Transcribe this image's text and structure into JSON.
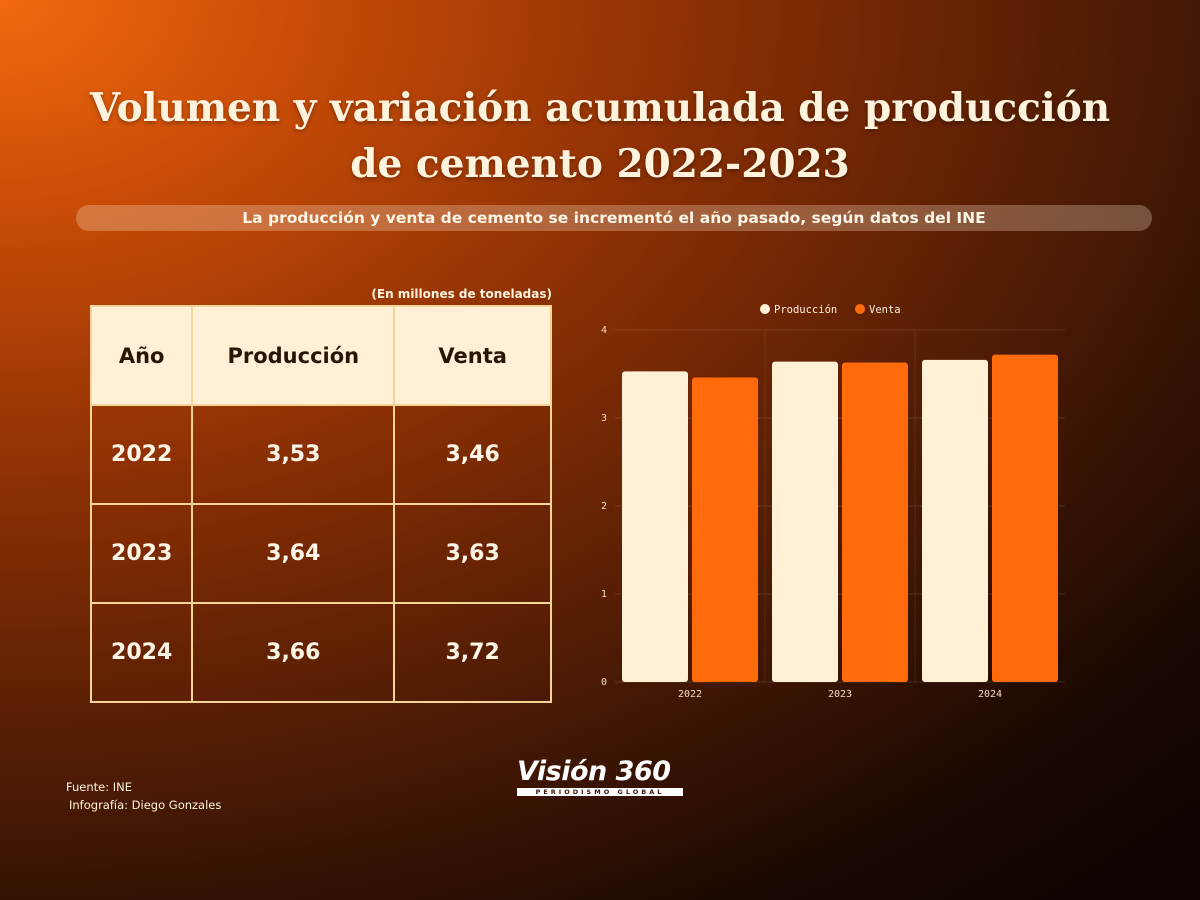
{
  "title": "Volumen y variación acumulada de producción de cemento 2022-2023",
  "subtitle": "La  producción y venta de cemento se incrementó el año pasado, según datos del INE",
  "unit_note": "(En millones de toneladas)",
  "table": {
    "headers": [
      "Año",
      "Producción",
      "Venta"
    ],
    "rows": [
      [
        "2022",
        "3,53",
        "3,46"
      ],
      [
        "2023",
        "3,64",
        "3,63"
      ],
      [
        "2024",
        "3,66",
        "3,72"
      ]
    ]
  },
  "chart_data": {
    "type": "bar",
    "categories": [
      "2022",
      "2023",
      "2024"
    ],
    "series": [
      {
        "name": "Producción",
        "values": [
          3.53,
          3.64,
          3.66
        ],
        "color": "#fff0d6"
      },
      {
        "name": "Venta",
        "values": [
          3.46,
          3.63,
          3.72
        ],
        "color": "#ff6a0a"
      }
    ],
    "ylim": [
      0,
      4
    ],
    "yticks": [
      "0",
      "1",
      "2",
      "3",
      "4"
    ],
    "grid": true,
    "legend": "top"
  },
  "footer": {
    "source": "Fuente: INE",
    "credit": "Infografía: Diego Gonzales"
  },
  "logo": {
    "main": "Visión 360",
    "tagline": "PERIODISMO GLOBAL"
  }
}
